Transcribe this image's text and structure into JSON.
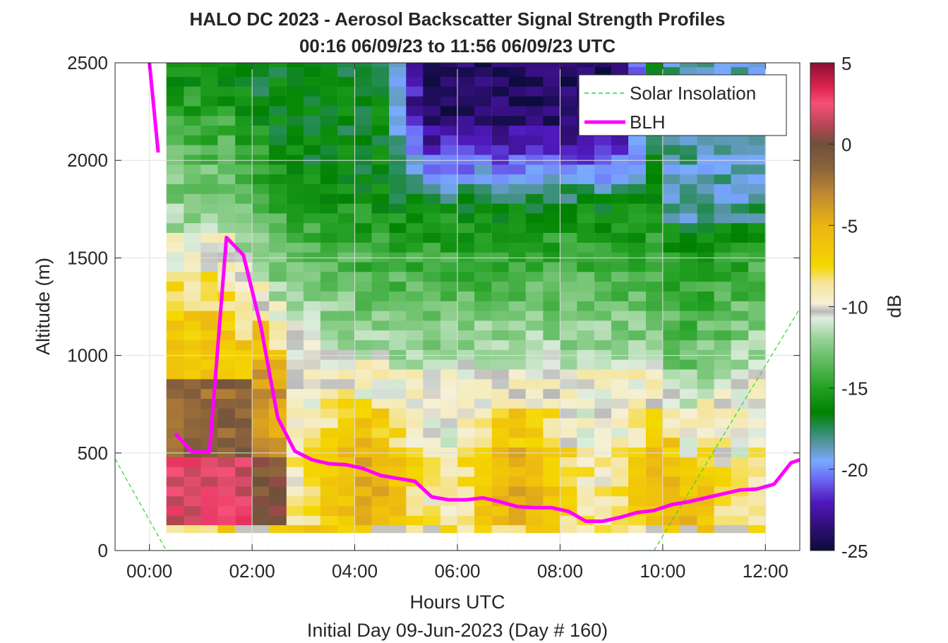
{
  "chart_data": {
    "type": "heatmap",
    "title_line1": "HALO DC 2023 - Aerosol Backscatter Signal Strength Profiles",
    "title_line2": "00:16 06/09/23 to 11:56 06/09/23  UTC",
    "xlabel": "Hours UTC",
    "xlabel2": "Initial Day 09-Jun-2023 (Day # 160)",
    "ylabel": "Altitude (m)",
    "colorbar_label": "dB",
    "xlim_hours": [
      -0.67,
      12.67
    ],
    "ylim": [
      0,
      2500
    ],
    "x_ticks": [
      {
        "value": 0,
        "label": "00:00"
      },
      {
        "value": 2,
        "label": "02:00"
      },
      {
        "value": 4,
        "label": "04:00"
      },
      {
        "value": 6,
        "label": "06:00"
      },
      {
        "value": 8,
        "label": "08:00"
      },
      {
        "value": 10,
        "label": "10:00"
      },
      {
        "value": 12,
        "label": "12:00"
      }
    ],
    "y_ticks": [
      0,
      500,
      1000,
      1500,
      2000,
      2500
    ],
    "colorbar_range": [
      -25,
      5
    ],
    "colorbar_ticks": [
      5,
      0,
      -5,
      -10,
      -15,
      -20,
      -25
    ],
    "grid": true,
    "legend_position": "top-right",
    "legend": [
      {
        "label": "Solar Insolation",
        "color": "#22dd22",
        "style": "dashed"
      },
      {
        "label": "BLH",
        "color": "#ff00ff",
        "style": "solid"
      }
    ],
    "blh_series": {
      "name": "BLH",
      "color": "#ff00ff",
      "segments": [
        [
          [
            0,
            2500
          ],
          [
            0.17,
            2040
          ]
        ],
        [
          [
            0.5,
            600
          ],
          [
            0.83,
            505
          ],
          [
            1.17,
            505
          ],
          [
            1.5,
            1605
          ],
          [
            1.83,
            1515
          ],
          [
            2.17,
            1150
          ],
          [
            2.5,
            680
          ],
          [
            2.83,
            510
          ],
          [
            3.17,
            465
          ],
          [
            3.5,
            445
          ],
          [
            3.83,
            440
          ],
          [
            4.17,
            420
          ],
          [
            4.5,
            385
          ],
          [
            4.83,
            370
          ],
          [
            5.17,
            355
          ],
          [
            5.5,
            275
          ],
          [
            5.83,
            260
          ],
          [
            6.17,
            260
          ],
          [
            6.5,
            270
          ],
          [
            6.83,
            250
          ],
          [
            7.17,
            225
          ],
          [
            7.5,
            220
          ],
          [
            7.83,
            220
          ],
          [
            8.17,
            200
          ],
          [
            8.5,
            150
          ],
          [
            8.83,
            150
          ],
          [
            9.17,
            170
          ],
          [
            9.5,
            195
          ],
          [
            9.83,
            205
          ],
          [
            10.17,
            235
          ],
          [
            10.5,
            250
          ],
          [
            10.83,
            270
          ],
          [
            11.17,
            290
          ],
          [
            11.5,
            310
          ],
          [
            11.83,
            315
          ],
          [
            12.17,
            340
          ],
          [
            12.5,
            450
          ],
          [
            12.67,
            465
          ]
        ]
      ]
    },
    "solar_insolation_series": {
      "name": "Solar Insolation",
      "color": "#22dd22",
      "points": [
        [
          -0.67,
          470
        ],
        [
          0.33,
          0
        ],
        [
          9.83,
          0
        ],
        [
          12.67,
          1240
        ]
      ]
    },
    "heatmap": {
      "x_start": 0.33,
      "x_end": 12,
      "y_start": 130,
      "y_end": 2500,
      "columns_hours": [
        0.33,
        0.67,
        1.0,
        1.33,
        1.67,
        2.0,
        2.33,
        2.67,
        3.0,
        3.33,
        3.67,
        4.0,
        4.33,
        4.67,
        5.0,
        5.33,
        5.67,
        6.0,
        6.33,
        6.67,
        7.0,
        7.33,
        7.67,
        8.0,
        8.33,
        8.67,
        9.0,
        9.33,
        9.67,
        10.0,
        10.33,
        10.67,
        11.0,
        11.33,
        11.67
      ],
      "bottom_band_m": [
        90,
        130
      ],
      "description_dB": "0 to 3 dB below 400 m before 02:00; -5 to -8 dB in boundary layer after 02:30; -10 dB near boundary-layer top; -12 to -17 dB free troposphere; -18 to -24 dB aloft between 04:30 and 09:30"
    }
  }
}
